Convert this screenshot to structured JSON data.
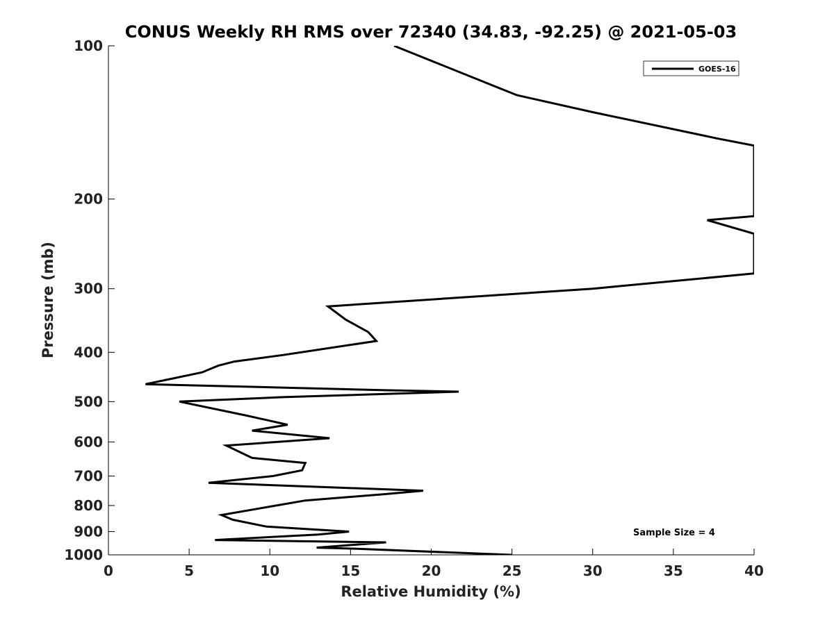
{
  "chart_data": {
    "type": "line",
    "title": "CONUS Weekly RH RMS over 72340 (34.83, -92.25) @ 2021-05-03",
    "xlabel": "Relative Humidity (%)",
    "ylabel": "Pressure (mb)",
    "xlim": [
      0,
      40
    ],
    "ylim": [
      1000,
      100
    ],
    "yscale": "log",
    "y_reversed": true,
    "grid": false,
    "legend_placement": "top-right",
    "x_ticks": [
      0,
      5,
      10,
      15,
      20,
      25,
      30,
      35,
      40
    ],
    "x_tick_labels": [
      "0",
      "5",
      "10",
      "15",
      "20",
      "25",
      "30",
      "35",
      "40"
    ],
    "y_ticks": [
      100,
      200,
      300,
      400,
      500,
      600,
      700,
      800,
      900,
      1000
    ],
    "y_tick_labels": [
      "100",
      "200",
      "300",
      "400",
      "500",
      "600",
      "700",
      "800",
      "900",
      "1000"
    ],
    "series": [
      {
        "name": "GOES-16",
        "color": "#000000",
        "points": [
          [
            17.7,
            100
          ],
          [
            25.3,
            125
          ],
          [
            30,
            135
          ],
          [
            37.7,
            152
          ],
          [
            40,
            157
          ],
          [
            40,
            216
          ],
          [
            37.1,
            220
          ],
          [
            40,
            234
          ],
          [
            40,
            280
          ],
          [
            30,
            300
          ],
          [
            13.6,
            325
          ],
          [
            14.7,
            345
          ],
          [
            16.1,
            365
          ],
          [
            16.6,
            380
          ],
          [
            10.8,
            405
          ],
          [
            7.8,
            417
          ],
          [
            6.8,
            425
          ],
          [
            5.8,
            438
          ],
          [
            2.3,
            462
          ],
          [
            17.4,
            475
          ],
          [
            21.7,
            478
          ],
          [
            10.8,
            490
          ],
          [
            4.4,
            500
          ],
          [
            8.5,
            532
          ],
          [
            11.1,
            555
          ],
          [
            8.9,
            570
          ],
          [
            13.7,
            590
          ],
          [
            7.3,
            610
          ],
          [
            8.9,
            645
          ],
          [
            12.2,
            660
          ],
          [
            12.0,
            682
          ],
          [
            10.2,
            700
          ],
          [
            6.2,
            722
          ],
          [
            19.5,
            748
          ],
          [
            17.1,
            760
          ],
          [
            12.2,
            782
          ],
          [
            7.0,
            835
          ],
          [
            7.7,
            853
          ],
          [
            9.8,
            880
          ],
          [
            14.9,
            900
          ],
          [
            13.0,
            912
          ],
          [
            6.6,
            935
          ],
          [
            17.2,
            945
          ],
          [
            12.9,
            968
          ],
          [
            15.1,
            972
          ],
          [
            25.0,
            1000
          ]
        ]
      }
    ],
    "annotation": "Sample Size = 4"
  }
}
